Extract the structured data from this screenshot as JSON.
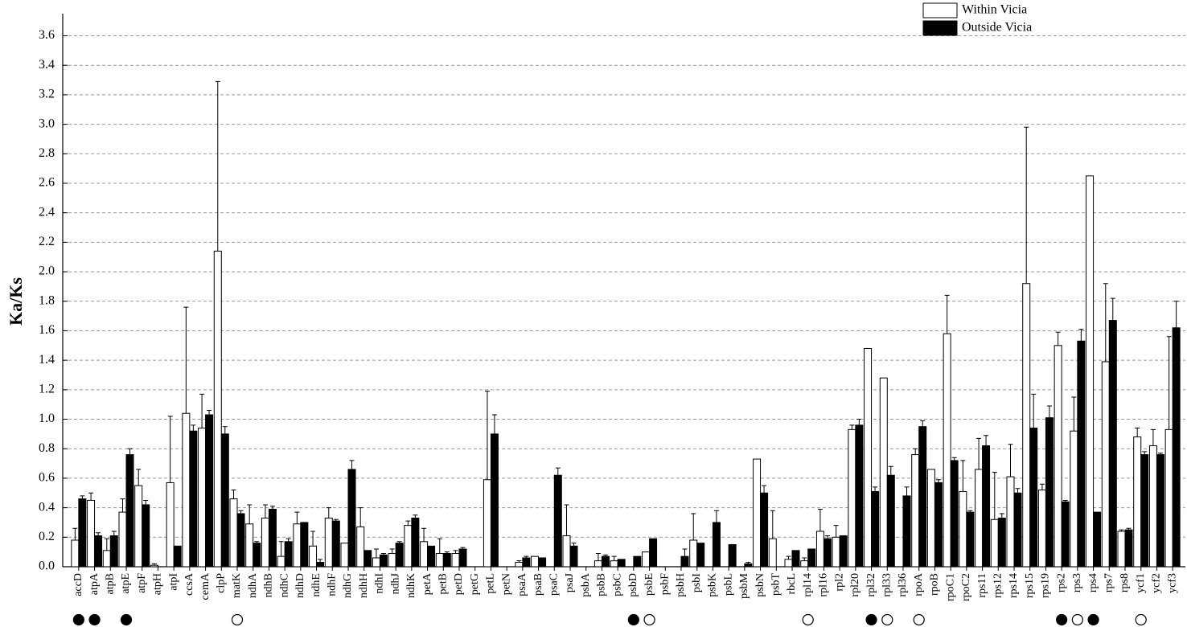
{
  "chart_data": {
    "type": "bar",
    "ylabel": "Ka/Ks",
    "categories": [
      "accD",
      "atpA",
      "atpB",
      "atpE",
      "atpF",
      "atpH",
      "atpI",
      "ccsA",
      "cemA",
      "clpP",
      "matK",
      "ndhA",
      "ndhB",
      "ndhC",
      "ndhD",
      "ndhE",
      "ndhF",
      "ndhG",
      "ndhH",
      "ndhI",
      "ndhJ",
      "ndhK",
      "petA",
      "petB",
      "petD",
      "petG",
      "petL",
      "petN",
      "psaA",
      "psaB",
      "psaC",
      "psaJ",
      "psbA",
      "psbB",
      "psbC",
      "psbD",
      "psbE",
      "psbF",
      "psbH",
      "psbI",
      "psbK",
      "psbL",
      "psbM",
      "psbN",
      "psbT",
      "rbcL",
      "rpl14",
      "rpl16",
      "rpl2",
      "rpl20",
      "rpl32",
      "rpl33",
      "rpl36",
      "rpoA",
      "rpoB",
      "rpoC1",
      "rpoC2",
      "rps11",
      "rps12",
      "rps14",
      "rps15",
      "rps19",
      "rps2",
      "rps3",
      "rps4",
      "rps7",
      "rps8",
      "ycf1",
      "ycf2",
      "ycf3"
    ],
    "series": [
      {
        "name": "Within Vicia",
        "color": "#ffffff",
        "values": [
          0.18,
          0.45,
          0.11,
          0.37,
          0.55,
          0.01,
          0.57,
          1.04,
          0.94,
          2.14,
          0.46,
          0.29,
          0.33,
          0.07,
          0.29,
          0.14,
          0.33,
          0.16,
          0.27,
          0.06,
          0.09,
          0.28,
          0.17,
          0.09,
          0.09,
          0,
          0.59,
          0,
          0.03,
          0.07,
          0,
          0.21,
          0,
          0.04,
          0.04,
          0,
          0.1,
          0,
          0,
          0.18,
          0,
          0,
          0,
          0.73,
          0.19,
          0.05,
          0.04,
          0.24,
          0.2,
          0.93,
          1.48,
          1.28,
          0,
          0.76,
          0.66,
          1.58,
          0.51,
          0.66,
          0.32,
          0.61,
          1.92,
          0.52,
          1.5,
          0.92,
          2.65,
          1.39,
          0.24,
          0.88,
          0.82,
          0.93
        ],
        "errors": [
          0.08,
          0.05,
          0.08,
          0.09,
          0.11,
          0.01,
          0.45,
          0.72,
          0.23,
          1.15,
          0.06,
          0.13,
          0.09,
          0.1,
          0.08,
          0.1,
          0.07,
          0,
          0.13,
          0.06,
          0.03,
          0.03,
          0.09,
          0.1,
          0.02,
          0,
          0.6,
          0,
          0.01,
          0,
          0,
          0.21,
          0,
          0.05,
          0.03,
          0,
          0,
          0,
          0,
          0.18,
          0,
          0,
          0,
          0,
          0.19,
          0.02,
          0.02,
          0.15,
          0.08,
          0.03,
          0,
          0,
          0,
          0.04,
          0,
          0.26,
          0.21,
          0.21,
          0.32,
          0.22,
          1.06,
          0.04,
          0.09,
          0.23,
          0,
          0.53,
          0.01,
          0.06,
          0.11,
          0.63
        ]
      },
      {
        "name": "Outside Vicia",
        "color": "#000000",
        "values": [
          0.46,
          0.21,
          0.21,
          0.76,
          0.42,
          0,
          0.14,
          0.92,
          1.03,
          0.9,
          0.36,
          0.16,
          0.39,
          0.17,
          0.3,
          0.03,
          0.31,
          0.66,
          0.11,
          0.08,
          0.16,
          0.33,
          0.14,
          0.09,
          0.12,
          0,
          0.9,
          0,
          0.06,
          0.06,
          0.62,
          0.14,
          0,
          0.07,
          0.05,
          0.07,
          0.19,
          0,
          0.07,
          0.16,
          0.3,
          0.15,
          0.02,
          0.5,
          0,
          0.11,
          0.12,
          0.19,
          0.21,
          0.96,
          0.51,
          0.62,
          0.48,
          0.95,
          0.57,
          0.72,
          0.37,
          0.82,
          0.33,
          0.5,
          0.94,
          1.01,
          0.44,
          1.53,
          0.37,
          1.67,
          0.25,
          0.76,
          0.76,
          1.62
        ],
        "errors": [
          0.02,
          0.02,
          0.03,
          0.04,
          0.03,
          0,
          0,
          0.04,
          0.03,
          0.05,
          0.02,
          0.01,
          0.02,
          0.02,
          0,
          0.02,
          0.01,
          0.06,
          0,
          0.01,
          0.01,
          0.02,
          0,
          0.01,
          0.01,
          0,
          0.13,
          0,
          0.01,
          0,
          0.05,
          0.02,
          0,
          0.01,
          0,
          0,
          0,
          0,
          0.05,
          0,
          0.08,
          0,
          0.01,
          0.05,
          0,
          0,
          0,
          0.02,
          0,
          0.04,
          0.03,
          0.06,
          0.06,
          0.04,
          0.02,
          0.02,
          0.01,
          0.07,
          0.03,
          0.03,
          0.23,
          0.08,
          0.01,
          0.08,
          0,
          0.15,
          0.01,
          0.02,
          0.01,
          0.18
        ]
      }
    ],
    "markers": [
      "filled",
      "filled",
      null,
      "filled",
      null,
      null,
      null,
      null,
      null,
      null,
      "open",
      null,
      null,
      null,
      null,
      null,
      null,
      null,
      null,
      null,
      null,
      null,
      null,
      null,
      null,
      null,
      null,
      null,
      null,
      null,
      null,
      null,
      null,
      null,
      null,
      "filled",
      "open",
      null,
      null,
      null,
      null,
      null,
      null,
      null,
      null,
      null,
      "open",
      null,
      null,
      null,
      "filled",
      "open",
      null,
      "open",
      null,
      null,
      null,
      null,
      null,
      null,
      null,
      null,
      "filled",
      "open",
      "filled",
      null,
      null,
      "open",
      null,
      null
    ],
    "ylim": [
      0,
      3.75
    ],
    "yticks": [
      {
        "value": 0,
        "label": "0.0"
      },
      0.2,
      0.4,
      0.6,
      0.8,
      {
        "value": 1,
        "label": "1.0"
      },
      1.2,
      1.4,
      1.6,
      1.8,
      {
        "value": 2,
        "label": "2.0"
      },
      2.2,
      2.4,
      2.6,
      2.8,
      {
        "value": 3,
        "label": "3.0"
      },
      3.2,
      3.4,
      3.6
    ],
    "grid": true,
    "legend": "top-right"
  }
}
